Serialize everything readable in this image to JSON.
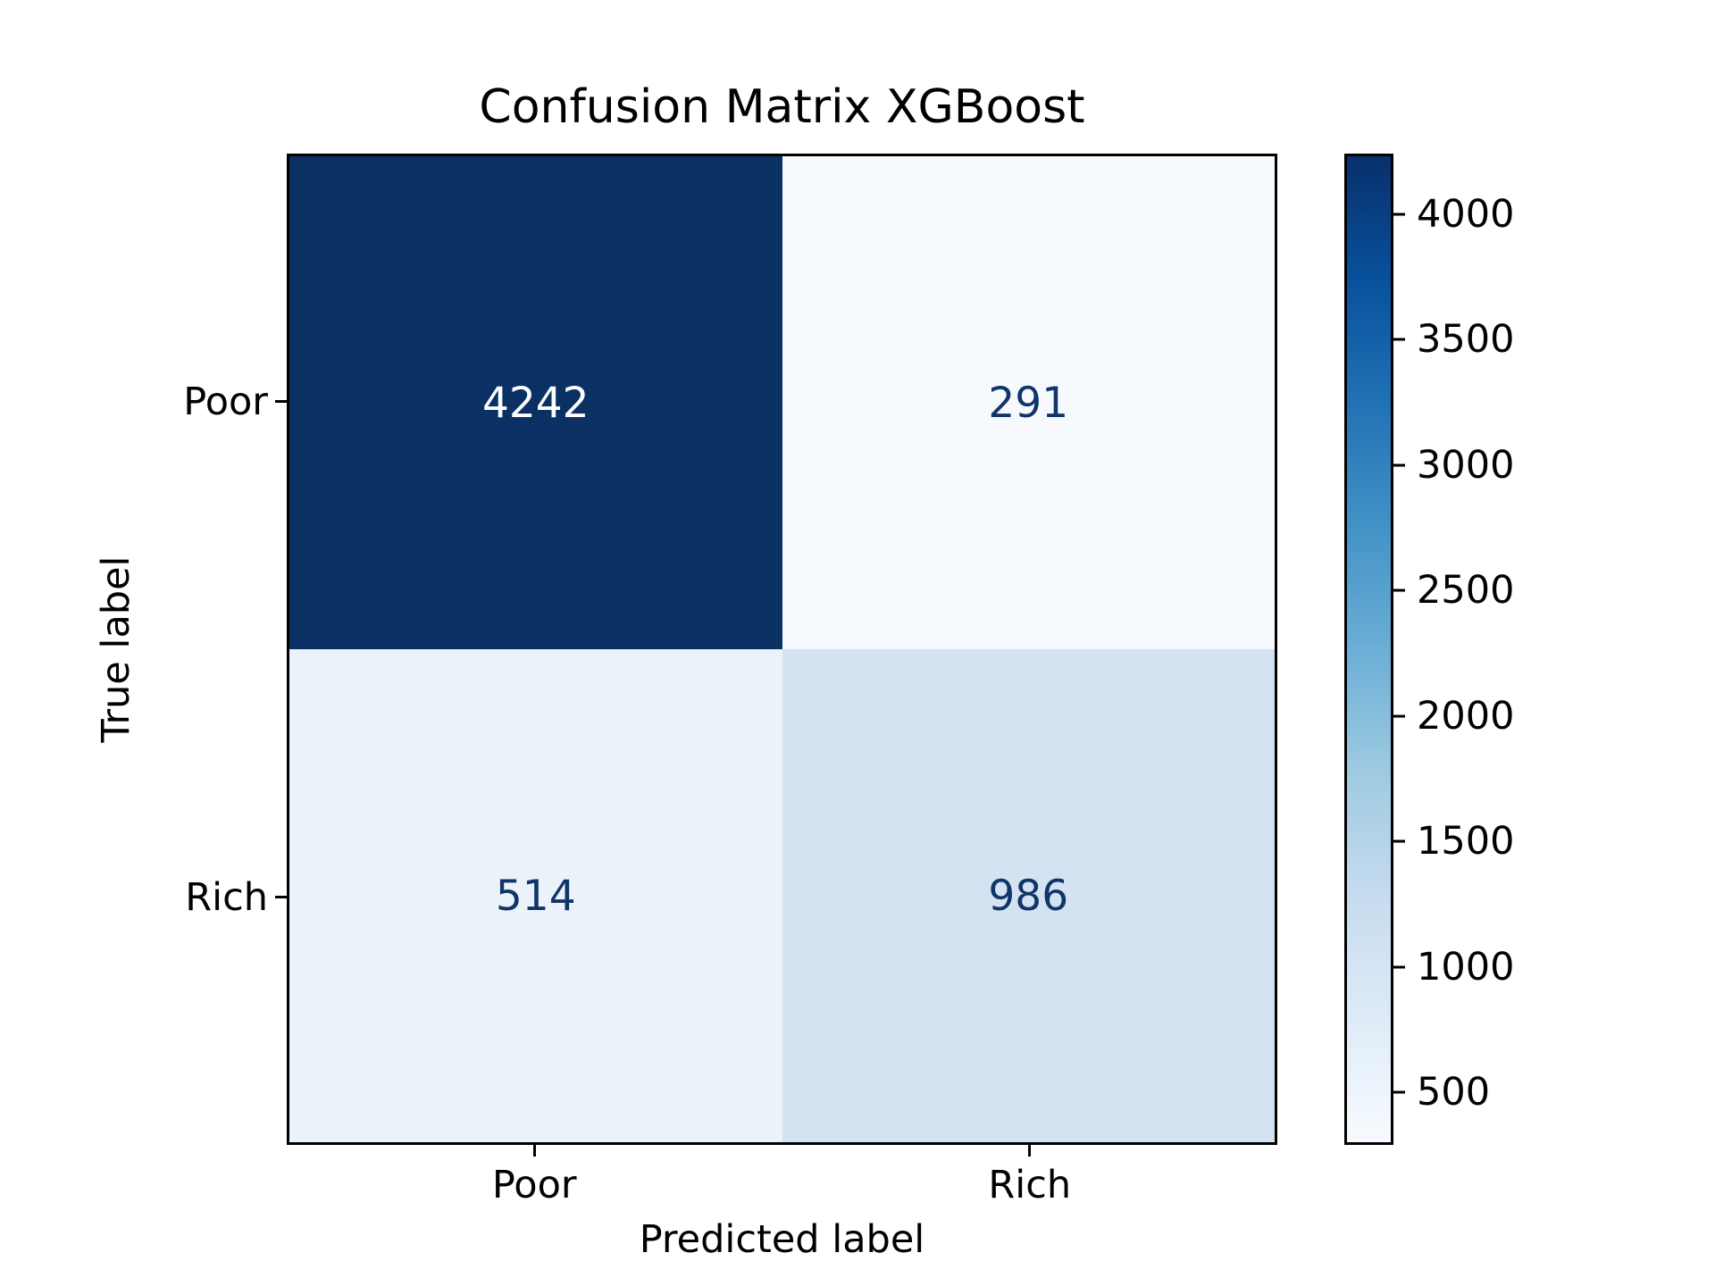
{
  "chart_data": {
    "type": "heatmap",
    "title": "Confusion Matrix XGBoost",
    "xlabel": "Predicted label",
    "ylabel": "True label",
    "x_categories": [
      "Poor",
      "Rich"
    ],
    "y_categories": [
      "Poor",
      "Rich"
    ],
    "matrix": [
      [
        4242,
        291
      ],
      [
        514,
        986
      ]
    ],
    "cell_colors": [
      [
        "#0b3164",
        "#f6fafe"
      ],
      [
        "#ecf2fa",
        "#d4e3f2"
      ]
    ],
    "cell_text_colors": [
      [
        "#ffffff",
        "#103569"
      ],
      [
        "#103569",
        "#103569"
      ]
    ],
    "grid": false,
    "colorbar": {
      "min": 291,
      "max": 4242,
      "ticks": [
        500,
        1000,
        1500,
        2000,
        2500,
        3000,
        3500,
        4000
      ],
      "colormap_name": "Blues",
      "gradient_stops": [
        "#f7fbff",
        "#deebf7",
        "#c6dbef",
        "#9ecae1",
        "#6baed6",
        "#4292c6",
        "#2171b5",
        "#08519c",
        "#08306b"
      ]
    }
  },
  "colors": {
    "background": "#ffffff",
    "spine": "#000000",
    "tick": "#000000"
  }
}
